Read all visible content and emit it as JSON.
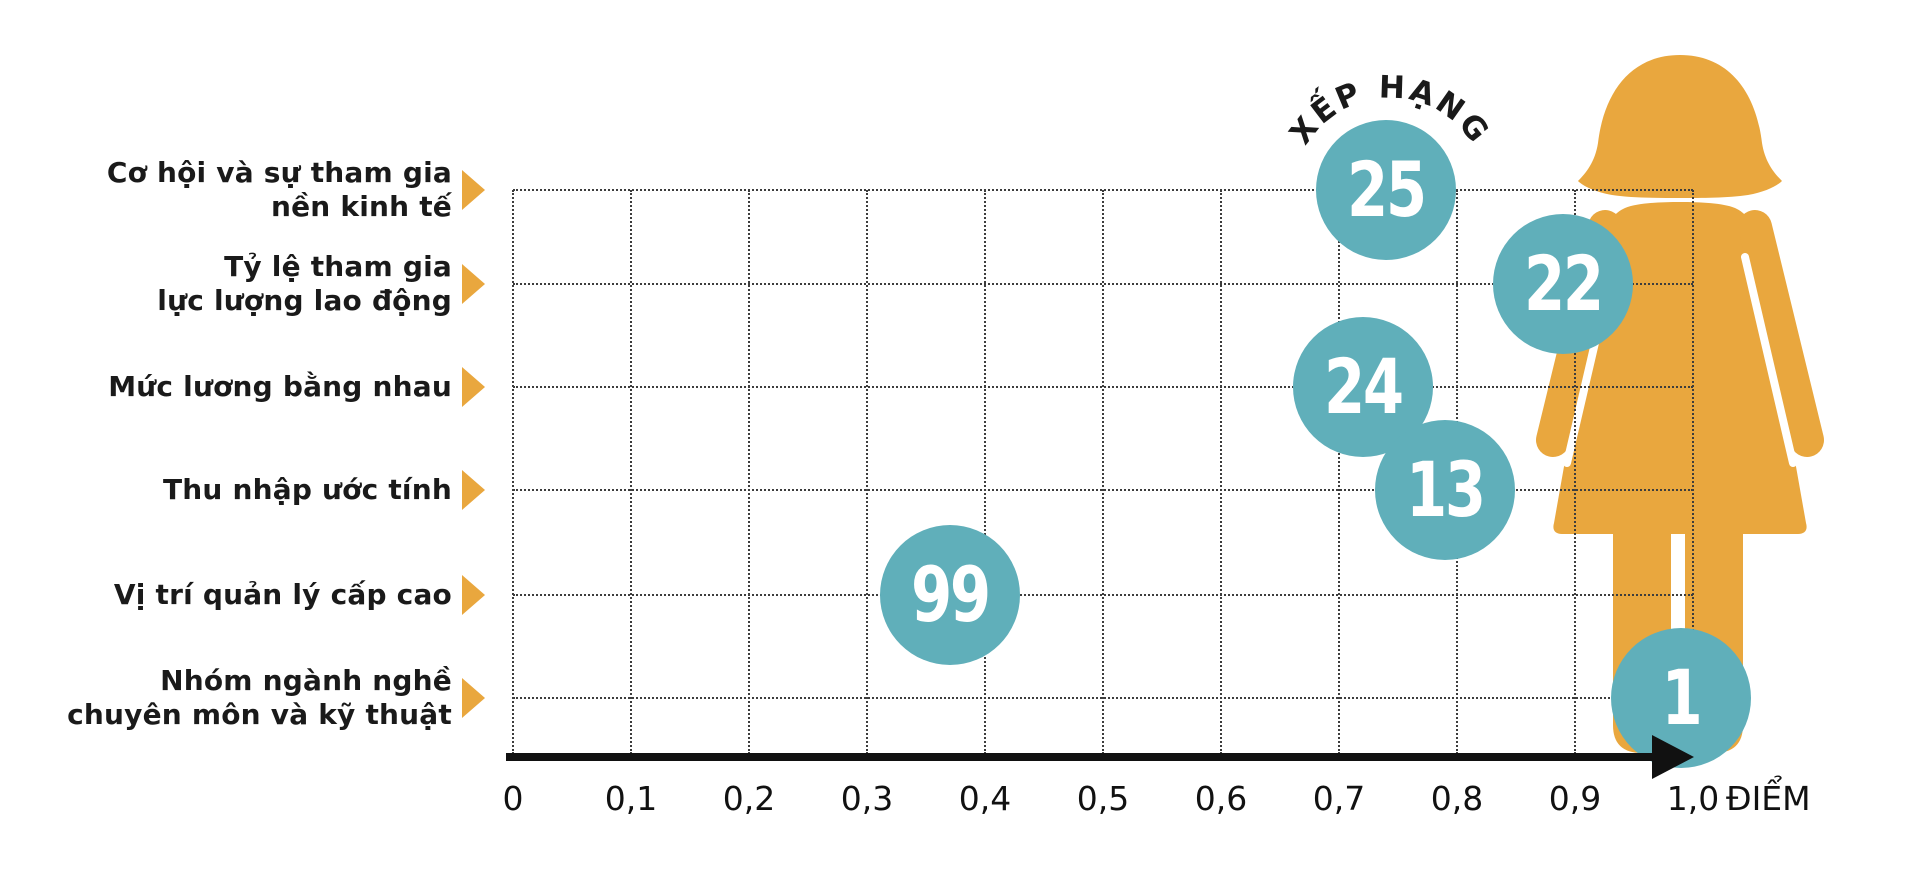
{
  "chart_data": {
    "type": "scatter",
    "title": "",
    "arc_label": "XẾP HẠNG",
    "xlabel": "ĐIỂM",
    "x_ticks": [
      "0",
      "0,1",
      "0,2",
      "0,3",
      "0,4",
      "0,5",
      "0,6",
      "0,7",
      "0,8",
      "0,9",
      "1,0"
    ],
    "xlim": [
      0,
      1.0
    ],
    "grid": "dotted",
    "legend_position": "top-right-arc",
    "rows": [
      {
        "category_lines": [
          "Cơ hội và sự tham gia",
          "nền kinh tế"
        ],
        "score": 0.74,
        "rank": "25"
      },
      {
        "category_lines": [
          "Tỷ lệ tham gia",
          "lực lượng lao động"
        ],
        "score": 0.89,
        "rank": "22"
      },
      {
        "category_lines": [
          "Mức lương bằng nhau"
        ],
        "score": 0.72,
        "rank": "24"
      },
      {
        "category_lines": [
          "Thu nhập ước tính"
        ],
        "score": 0.79,
        "rank": "13"
      },
      {
        "category_lines": [
          "Vị trí quản lý cấp cao"
        ],
        "score": 0.37,
        "rank": "99"
      },
      {
        "category_lines": [
          "Nhóm ngành nghề",
          "chuyên môn và kỹ thuật"
        ],
        "score": 0.99,
        "rank": "1"
      }
    ],
    "colors": {
      "bubble_teal": "#60AFBA",
      "figure_orange": "#E9A73E",
      "text_dark": "#1a1a1a",
      "axis_black": "#111111",
      "grid_gray": "#3d3d3d",
      "bubble_text": "#ffffff"
    },
    "decoration": "woman-silhouette"
  }
}
